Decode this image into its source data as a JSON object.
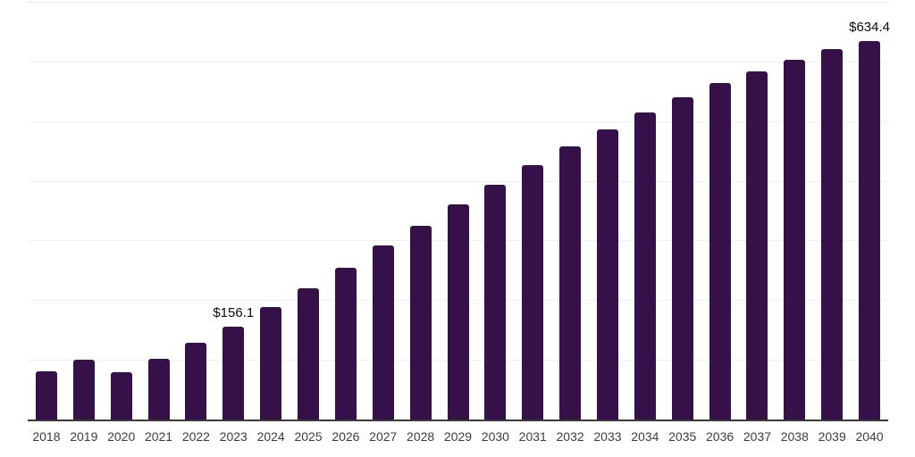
{
  "chart_data": {
    "type": "bar",
    "title": "",
    "xlabel": "",
    "ylabel": "",
    "categories": [
      "2018",
      "2019",
      "2020",
      "2021",
      "2022",
      "2023",
      "2024",
      "2025",
      "2026",
      "2027",
      "2028",
      "2029",
      "2030",
      "2031",
      "2032",
      "2033",
      "2034",
      "2035",
      "2036",
      "2037",
      "2038",
      "2039",
      "2040"
    ],
    "values": [
      80.3,
      100.0,
      79.4,
      101.5,
      128.3,
      156.1,
      188.4,
      220.4,
      254.4,
      291.0,
      325.2,
      359.9,
      392.9,
      426.6,
      458.4,
      485.6,
      514.0,
      539.7,
      563.5,
      583.9,
      603.5,
      620.6,
      634.4
    ],
    "value_labels": {
      "2023": "$156.1",
      "2040": "$634.4"
    },
    "ylim": [
      0,
      700
    ],
    "gridline_step": 100,
    "grid": "horizontal",
    "legend": "none",
    "y_axis_tick_labels": "hidden",
    "colors": {
      "bar": "#361149",
      "axis_line": "#3a3a3a",
      "tick_label": "#3d3d3d",
      "value_label": "#0b0b0b",
      "gridline": "#f1f1f1",
      "top_gridline": "#e9e9e9",
      "background": "#ffffff"
    }
  }
}
